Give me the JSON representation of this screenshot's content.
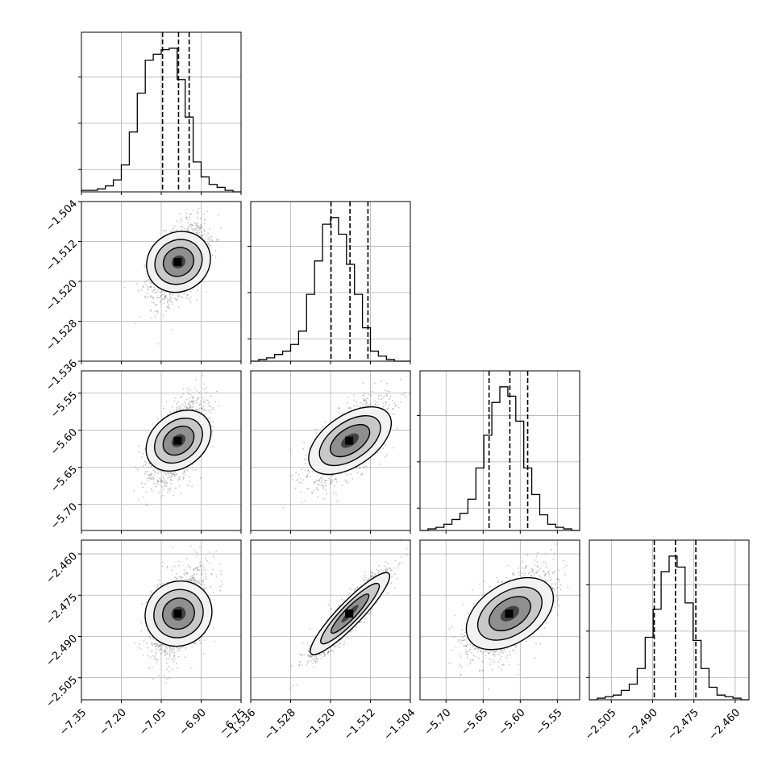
{
  "chart_data": {
    "type": "scatter",
    "title": "",
    "grid": true,
    "parameters": [
      {
        "range": [
          -7.35,
          -6.75
        ],
        "ticks": [
          "−7.35",
          "−7.20",
          "−7.05",
          "−6.90",
          "−6.75"
        ],
        "tick_values": [
          -7.35,
          -7.2,
          -7.05,
          -6.9,
          -6.75
        ],
        "quantiles": [
          -7.045,
          -6.985,
          -6.945
        ]
      },
      {
        "range": [
          -1.536,
          -1.504
        ],
        "ticks": [
          "−1.536",
          "−1.528",
          "−1.520",
          "−1.512",
          "−1.504"
        ],
        "tick_values": [
          -1.536,
          -1.528,
          -1.52,
          -1.512,
          -1.504
        ],
        "quantiles": [
          -1.5199,
          -1.5161,
          -1.5125
        ]
      },
      {
        "range": [
          -5.735,
          -5.52
        ],
        "ticks": [
          "−5.70",
          "−5.65",
          "−5.60",
          "−5.55"
        ],
        "tick_values": [
          -5.7,
          -5.65,
          -5.6,
          -5.55
        ],
        "quantiles": [
          -5.642,
          -5.614,
          -5.59
        ]
      },
      {
        "range": [
          -2.513,
          -2.455
        ],
        "ticks": [
          "−2.505",
          "−2.490",
          "−2.475",
          "−2.460"
        ],
        "tick_values": [
          -2.505,
          -2.49,
          -2.475,
          -2.46
        ],
        "quantiles": [
          -2.4894,
          -2.4817,
          -2.4743
        ]
      }
    ],
    "histograms": [
      [
        1,
        1,
        2,
        4,
        8,
        18,
        40,
        66,
        88,
        92,
        95,
        96,
        75,
        50,
        20,
        10,
        5,
        3,
        1,
        0
      ],
      [
        0,
        1,
        2,
        4,
        6,
        10,
        18,
        40,
        60,
        82,
        86,
        76,
        58,
        40,
        20,
        6,
        3,
        1,
        0,
        0
      ],
      [
        0,
        1,
        2,
        4,
        7,
        11,
        20,
        40,
        61,
        82,
        92,
        86,
        70,
        40,
        23,
        10,
        4,
        2,
        1,
        0
      ],
      [
        0,
        1,
        2,
        3,
        6,
        10,
        20,
        40,
        58,
        82,
        92,
        85,
        62,
        38,
        20,
        8,
        3,
        2,
        1,
        0
      ]
    ],
    "correlations": {
      "1_0": 0.45,
      "2_0": 0.55,
      "2_1": 0.65,
      "3_0": 0.45,
      "3_1": 0.92,
      "3_2": 0.6
    },
    "samples_per_panel": 1800,
    "colors": {
      "line": "#000000",
      "grid": "#b0b0b0",
      "points": "#555555"
    }
  }
}
